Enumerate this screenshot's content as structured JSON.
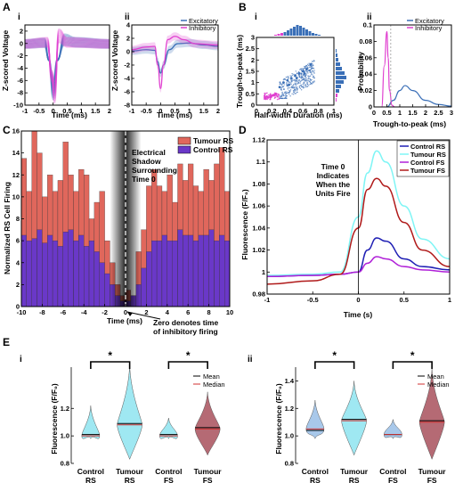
{
  "panels": {
    "A": {
      "label": "A",
      "i": {
        "label": "i",
        "xlabel": "Time (ms)",
        "ylabel": "Z-scored Voltage",
        "xticks": [
          "-1",
          "-0.5",
          "0",
          "0.5",
          "1",
          "1.5",
          "2"
        ],
        "yticks": [
          "2",
          "0",
          "-2",
          "-4",
          "-6",
          "-8",
          "-10"
        ]
      },
      "ii": {
        "label": "ii",
        "xlabel": "Time (ms)",
        "ylabel": "Z-scored Voltage",
        "xticks": [
          "-1",
          "-0.5",
          "0",
          "0.5",
          "1",
          "1.5",
          "2"
        ],
        "yticks": [
          "4",
          "2",
          "0",
          "-2",
          "-4",
          "-6",
          "-8"
        ],
        "legend": [
          "Excitatory",
          "Inhibitory"
        ]
      }
    },
    "B": {
      "label": "B",
      "i": {
        "label": "i",
        "xlabel": "Half-width Duration (ms)",
        "ylabel": "Trough-to-peak (ms)",
        "xticks": [
          "0",
          "0.2",
          "0.4",
          "0.6",
          "0.8",
          "1"
        ],
        "yticks": [
          "3",
          "2.5",
          "2",
          "1.5",
          "1",
          "0.5",
          "0"
        ]
      },
      "ii": {
        "label": "ii",
        "xlabel": "Trough-to-peak (ms)",
        "ylabel": "Probability",
        "xticks": [
          "0",
          "0.5",
          "1",
          "1.5",
          "2",
          "2.5",
          "3"
        ],
        "yticks": [
          "0.1",
          "0.08",
          "0.06",
          "0.04",
          "0.02",
          "0"
        ],
        "legend": [
          "Excitatory",
          "Inhibitory"
        ]
      }
    },
    "C": {
      "label": "C",
      "xlabel": "Time (ms)",
      "ylabel": "Normalized RS Cell Firing",
      "xticks": [
        "-10",
        "-8",
        "-6",
        "-4",
        "-2",
        "0",
        "2",
        "4",
        "6",
        "8",
        "10"
      ],
      "yticks": [
        "0",
        "2",
        "4",
        "6",
        "8",
        "10",
        "12",
        "14",
        "16"
      ],
      "legend": [
        "Tumour RS",
        "Control RS"
      ],
      "shadow_text": "Electrical Shadow Surrounding Time 0",
      "annotation": "Zero denotes time of inhibitory firing"
    },
    "D": {
      "label": "D",
      "xlabel": "Time (s)",
      "ylabel": "Fluorescence (F/F₀)",
      "xticks": [
        "-1",
        "-0.5",
        "0",
        "0.5",
        "1"
      ],
      "yticks": [
        "1.12",
        "1.1",
        "1.08",
        "1.06",
        "1.04",
        "1.02",
        "1",
        "0.98"
      ],
      "legend": [
        "Control RS",
        "Tumour RS",
        "Control FS",
        "Tumour FS"
      ],
      "annotation": "Time 0 Indicates When the Units Fire"
    },
    "E": {
      "label": "E",
      "i": {
        "label": "i",
        "ylabel": "Fluorescence (F/F₀)",
        "yticks": [
          "1.2",
          "1.0",
          "0.8"
        ],
        "groups": [
          [
            "Control",
            "RS"
          ],
          [
            "Tumour",
            "RS"
          ],
          [
            "Control",
            "FS"
          ],
          [
            "Tumour",
            "FS"
          ]
        ],
        "legend": [
          "Mean",
          "Median"
        ],
        "sig": "*"
      },
      "ii": {
        "label": "ii",
        "ylabel": "Fluorescence (F/F₀)",
        "yticks": [
          "1.4",
          "1.2",
          "1.0",
          "0.8"
        ],
        "groups": [
          [
            "Control",
            "RS"
          ],
          [
            "Tumour",
            "RS"
          ],
          [
            "Control",
            "FS"
          ],
          [
            "Tumour",
            "FS"
          ]
        ],
        "legend": [
          "Mean",
          "Median"
        ],
        "sig": "*"
      }
    }
  },
  "colors": {
    "excitatory": "#3a6fb7",
    "inhibitory": "#e040d0",
    "control_rs": "#1f1fb4",
    "tumour_rs": "#7ff5f5",
    "control_fs": "#b020d8",
    "tumour_fs": "#b01a1a",
    "hist_tumour": "#e0675c",
    "hist_control": "#6a38c8",
    "violin_cyan": "#9fe8f2",
    "violin_red": "#b56a74",
    "violin_blue": "#a8c8ea"
  },
  "chart_data": [
    {
      "type": "line",
      "id": "A-i",
      "xlim": [
        -1,
        2
      ],
      "ylim": [
        -10,
        3
      ],
      "series": [
        {
          "name": "Excitatory",
          "x": [
            -1,
            -0.3,
            -0.15,
            0,
            0.15,
            0.4,
            0.8,
            2
          ],
          "y": [
            0,
            0.2,
            -3,
            -8.5,
            -3,
            0.8,
            0.3,
            0
          ]
        },
        {
          "name": "Inhibitory",
          "x": [
            -1,
            -0.2,
            -0.05,
            0.05,
            0.2,
            0.5,
            2
          ],
          "y": [
            0,
            0.3,
            -6,
            -9,
            1.5,
            0.3,
            0
          ]
        }
      ]
    },
    {
      "type": "line",
      "id": "A-ii",
      "xlim": [
        -1,
        2
      ],
      "ylim": [
        -8,
        4
      ],
      "series": [
        {
          "name": "Excitatory",
          "x": [
            -1,
            -0.5,
            -0.2,
            -0.1,
            0,
            0.1,
            0.3,
            0.6,
            1,
            1.5,
            2
          ],
          "y": [
            0.1,
            0.3,
            0.2,
            -1.5,
            -3.2,
            -2,
            0.3,
            1.2,
            1.3,
            1.0,
            0.8
          ]
        },
        {
          "name": "Inhibitory",
          "x": [
            -1,
            -0.5,
            -0.2,
            -0.1,
            0,
            0.1,
            0.25,
            0.5,
            0.8,
            1.2,
            2
          ],
          "y": [
            0.3,
            0.7,
            0.8,
            -2,
            -5.5,
            -2,
            1.8,
            2.3,
            1.8,
            1.2,
            1.0
          ]
        }
      ]
    },
    {
      "type": "scatter",
      "id": "B-i",
      "xlim": [
        0,
        1
      ],
      "ylim": [
        0,
        3
      ],
      "series": [
        {
          "name": "Excitatory",
          "x": [
            0.3,
            0.35,
            0.4,
            0.45,
            0.5,
            0.55,
            0.6,
            0.65,
            0.7,
            0.42,
            0.52,
            0.62
          ],
          "y": [
            0.8,
            1.0,
            1.1,
            1.2,
            1.3,
            1.4,
            1.5,
            1.6,
            1.8,
            0.9,
            1.2,
            1.4
          ]
        },
        {
          "name": "Inhibitory",
          "x": [
            0.12,
            0.15,
            0.18,
            0.2,
            0.22,
            0.25
          ],
          "y": [
            0.3,
            0.35,
            0.4,
            0.42,
            0.45,
            0.5
          ]
        }
      ]
    },
    {
      "type": "line",
      "id": "B-ii",
      "xlim": [
        0,
        3
      ],
      "ylim": [
        0,
        0.1
      ],
      "series": [
        {
          "name": "Excitatory",
          "x": [
            0.5,
            0.75,
            1,
            1.2,
            1.5,
            2,
            2.5,
            3
          ],
          "y": [
            0,
            0.008,
            0.02,
            0.026,
            0.02,
            0.008,
            0.003,
            0.001
          ]
        },
        {
          "name": "Inhibitory",
          "x": [
            0.3,
            0.4,
            0.5,
            0.55,
            0.6,
            0.7,
            0.8
          ],
          "y": [
            0,
            0.05,
            0.092,
            0.06,
            0.02,
            0.002,
            0
          ]
        }
      ]
    },
    {
      "type": "bar",
      "id": "C",
      "xlim": [
        -10,
        10
      ],
      "ylim": [
        0,
        16
      ],
      "x": [
        -9.75,
        -9.25,
        -8.75,
        -8.25,
        -7.75,
        -7.25,
        -6.75,
        -6.25,
        -5.75,
        -5.25,
        -4.75,
        -4.25,
        -3.75,
        -3.25,
        -2.75,
        -2.25,
        -1.75,
        -1.25,
        -0.75,
        -0.25,
        0.25,
        0.75,
        1.25,
        1.75,
        2.25,
        2.75,
        3.25,
        3.75,
        4.25,
        4.75,
        5.25,
        5.75,
        6.25,
        6.75,
        7.25,
        7.75,
        8.25,
        8.75,
        9.25,
        9.75
      ],
      "series": [
        {
          "name": "Tumour RS",
          "values": [
            13.5,
            10.5,
            16,
            14,
            10,
            12,
            10.5,
            11.5,
            15,
            12,
            10.5,
            12.5,
            12,
            8,
            9.5,
            10.5,
            6,
            4,
            2,
            1,
            1.5,
            1,
            5,
            7,
            11,
            12.5,
            11,
            10.5,
            12,
            9.5,
            13,
            11.5,
            13,
            11,
            10.5,
            12.5,
            11.5,
            13,
            14.5,
            10.5
          ]
        },
        {
          "name": "Control RS",
          "values": [
            6.5,
            6,
            6.2,
            7,
            5.8,
            6.5,
            6,
            5.5,
            6.8,
            7,
            6,
            6.5,
            5.5,
            6,
            5,
            4,
            3,
            2,
            1,
            0.5,
            0.5,
            1,
            2,
            3.5,
            5,
            6,
            6,
            6.5,
            6,
            6,
            7,
            6.5,
            6.5,
            6,
            6.5,
            6.5,
            7,
            6,
            6.5,
            6
          ]
        }
      ]
    },
    {
      "type": "line",
      "id": "D",
      "xlim": [
        -1,
        1
      ],
      "ylim": [
        0.98,
        1.12
      ],
      "x": [
        -1,
        -0.5,
        -0.2,
        0,
        0.1,
        0.2,
        0.3,
        0.5,
        0.7,
        1
      ],
      "series": [
        {
          "name": "Control RS",
          "values": [
            0.996,
            0.997,
            0.998,
            1.0,
            1.02,
            1.031,
            1.028,
            1.012,
            1.005,
            1.002
          ]
        },
        {
          "name": "Tumour RS",
          "values": [
            0.997,
            0.998,
            1.0,
            1.05,
            1.09,
            1.11,
            1.1,
            1.06,
            1.03,
            1.012
          ]
        },
        {
          "name": "Control FS",
          "values": [
            0.996,
            0.997,
            0.998,
            1.0,
            1.008,
            1.014,
            1.012,
            1.005,
            1.002,
            1.0
          ]
        },
        {
          "name": "Tumour FS",
          "values": [
            0.989,
            0.992,
            0.998,
            1.04,
            1.075,
            1.085,
            1.078,
            1.045,
            1.02,
            1.005
          ]
        }
      ]
    },
    {
      "type": "violin",
      "id": "E-i",
      "ylim": [
        0.8,
        1.5
      ],
      "categories": [
        "Control RS",
        "Tumour RS",
        "Control FS",
        "Tumour FS"
      ],
      "mean": [
        1.01,
        1.09,
        1.01,
        1.06
      ],
      "median": [
        1.0,
        1.08,
        1.0,
        1.05
      ],
      "max": [
        1.22,
        1.52,
        1.13,
        1.32
      ],
      "min": [
        0.98,
        0.83,
        0.98,
        0.86
      ]
    },
    {
      "type": "violin",
      "id": "E-ii",
      "ylim": [
        0.8,
        1.5
      ],
      "categories": [
        "Control RS",
        "Tumour RS",
        "Control FS",
        "Tumour FS"
      ],
      "mean": [
        1.04,
        1.12,
        1.01,
        1.11
      ],
      "median": [
        1.05,
        1.11,
        1.01,
        1.1
      ],
      "max": [
        1.26,
        1.4,
        1.12,
        1.49
      ],
      "min": [
        0.98,
        0.86,
        0.98,
        0.83
      ]
    }
  ]
}
